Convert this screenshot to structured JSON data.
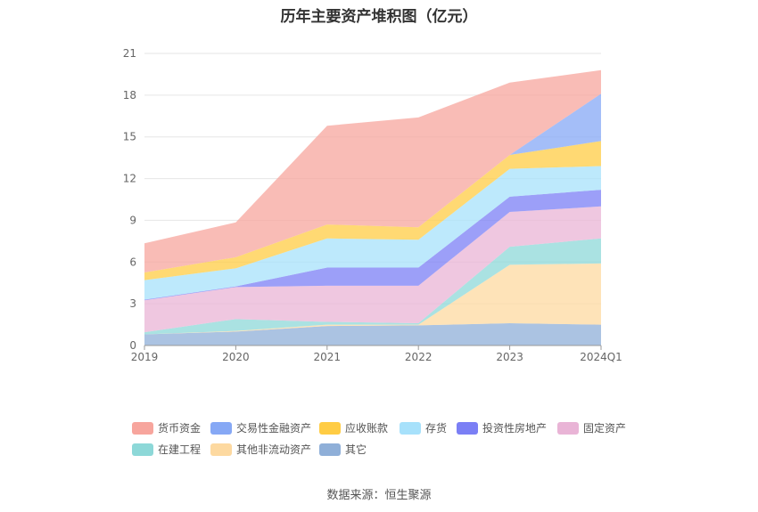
{
  "title": "历年主要资产堆积图（亿元）",
  "source": "数据来源：恒生聚源",
  "chart_data": {
    "type": "area",
    "stacked": true,
    "categories": [
      "2019",
      "2020",
      "2021",
      "2022",
      "2023",
      "2024Q1"
    ],
    "ylim": [
      0,
      21
    ],
    "yticks": [
      0,
      3,
      6,
      9,
      12,
      15,
      18,
      21
    ],
    "grid": true,
    "legend_position": "bottom",
    "series": [
      {
        "name": "其它",
        "color": "#8fafd8",
        "values": [
          0.8,
          1.0,
          1.4,
          1.45,
          1.6,
          1.5
        ]
      },
      {
        "name": "其他非流动资产",
        "color": "#fdd9a0",
        "values": [
          0.0,
          0.05,
          0.1,
          0.05,
          4.2,
          4.4
        ]
      },
      {
        "name": "在建工程",
        "color": "#8dd8d8",
        "values": [
          0.15,
          0.85,
          0.2,
          0.1,
          1.3,
          1.8
        ]
      },
      {
        "name": "固定资产",
        "color": "#e9b4d6",
        "values": [
          2.3,
          2.3,
          2.6,
          2.7,
          2.5,
          2.3
        ]
      },
      {
        "name": "投资性房地产",
        "color": "#7b7ff5",
        "values": [
          0.05,
          0.05,
          1.3,
          1.3,
          1.1,
          1.2
        ]
      },
      {
        "name": "存货",
        "color": "#a7e1fb",
        "values": [
          1.4,
          1.3,
          2.1,
          2.0,
          2.0,
          1.7
        ]
      },
      {
        "name": "应收账款",
        "color": "#ffcc44",
        "values": [
          0.55,
          0.8,
          1.0,
          0.9,
          1.0,
          1.8
        ]
      },
      {
        "name": "交易性金融资产",
        "color": "#86a8f5",
        "values": [
          0.0,
          0.0,
          0.0,
          0.0,
          0.0,
          3.4
        ]
      },
      {
        "name": "货币资金",
        "color": "#f7a59d",
        "values": [
          2.1,
          2.5,
          7.1,
          7.9,
          5.2,
          1.7
        ]
      }
    ]
  }
}
